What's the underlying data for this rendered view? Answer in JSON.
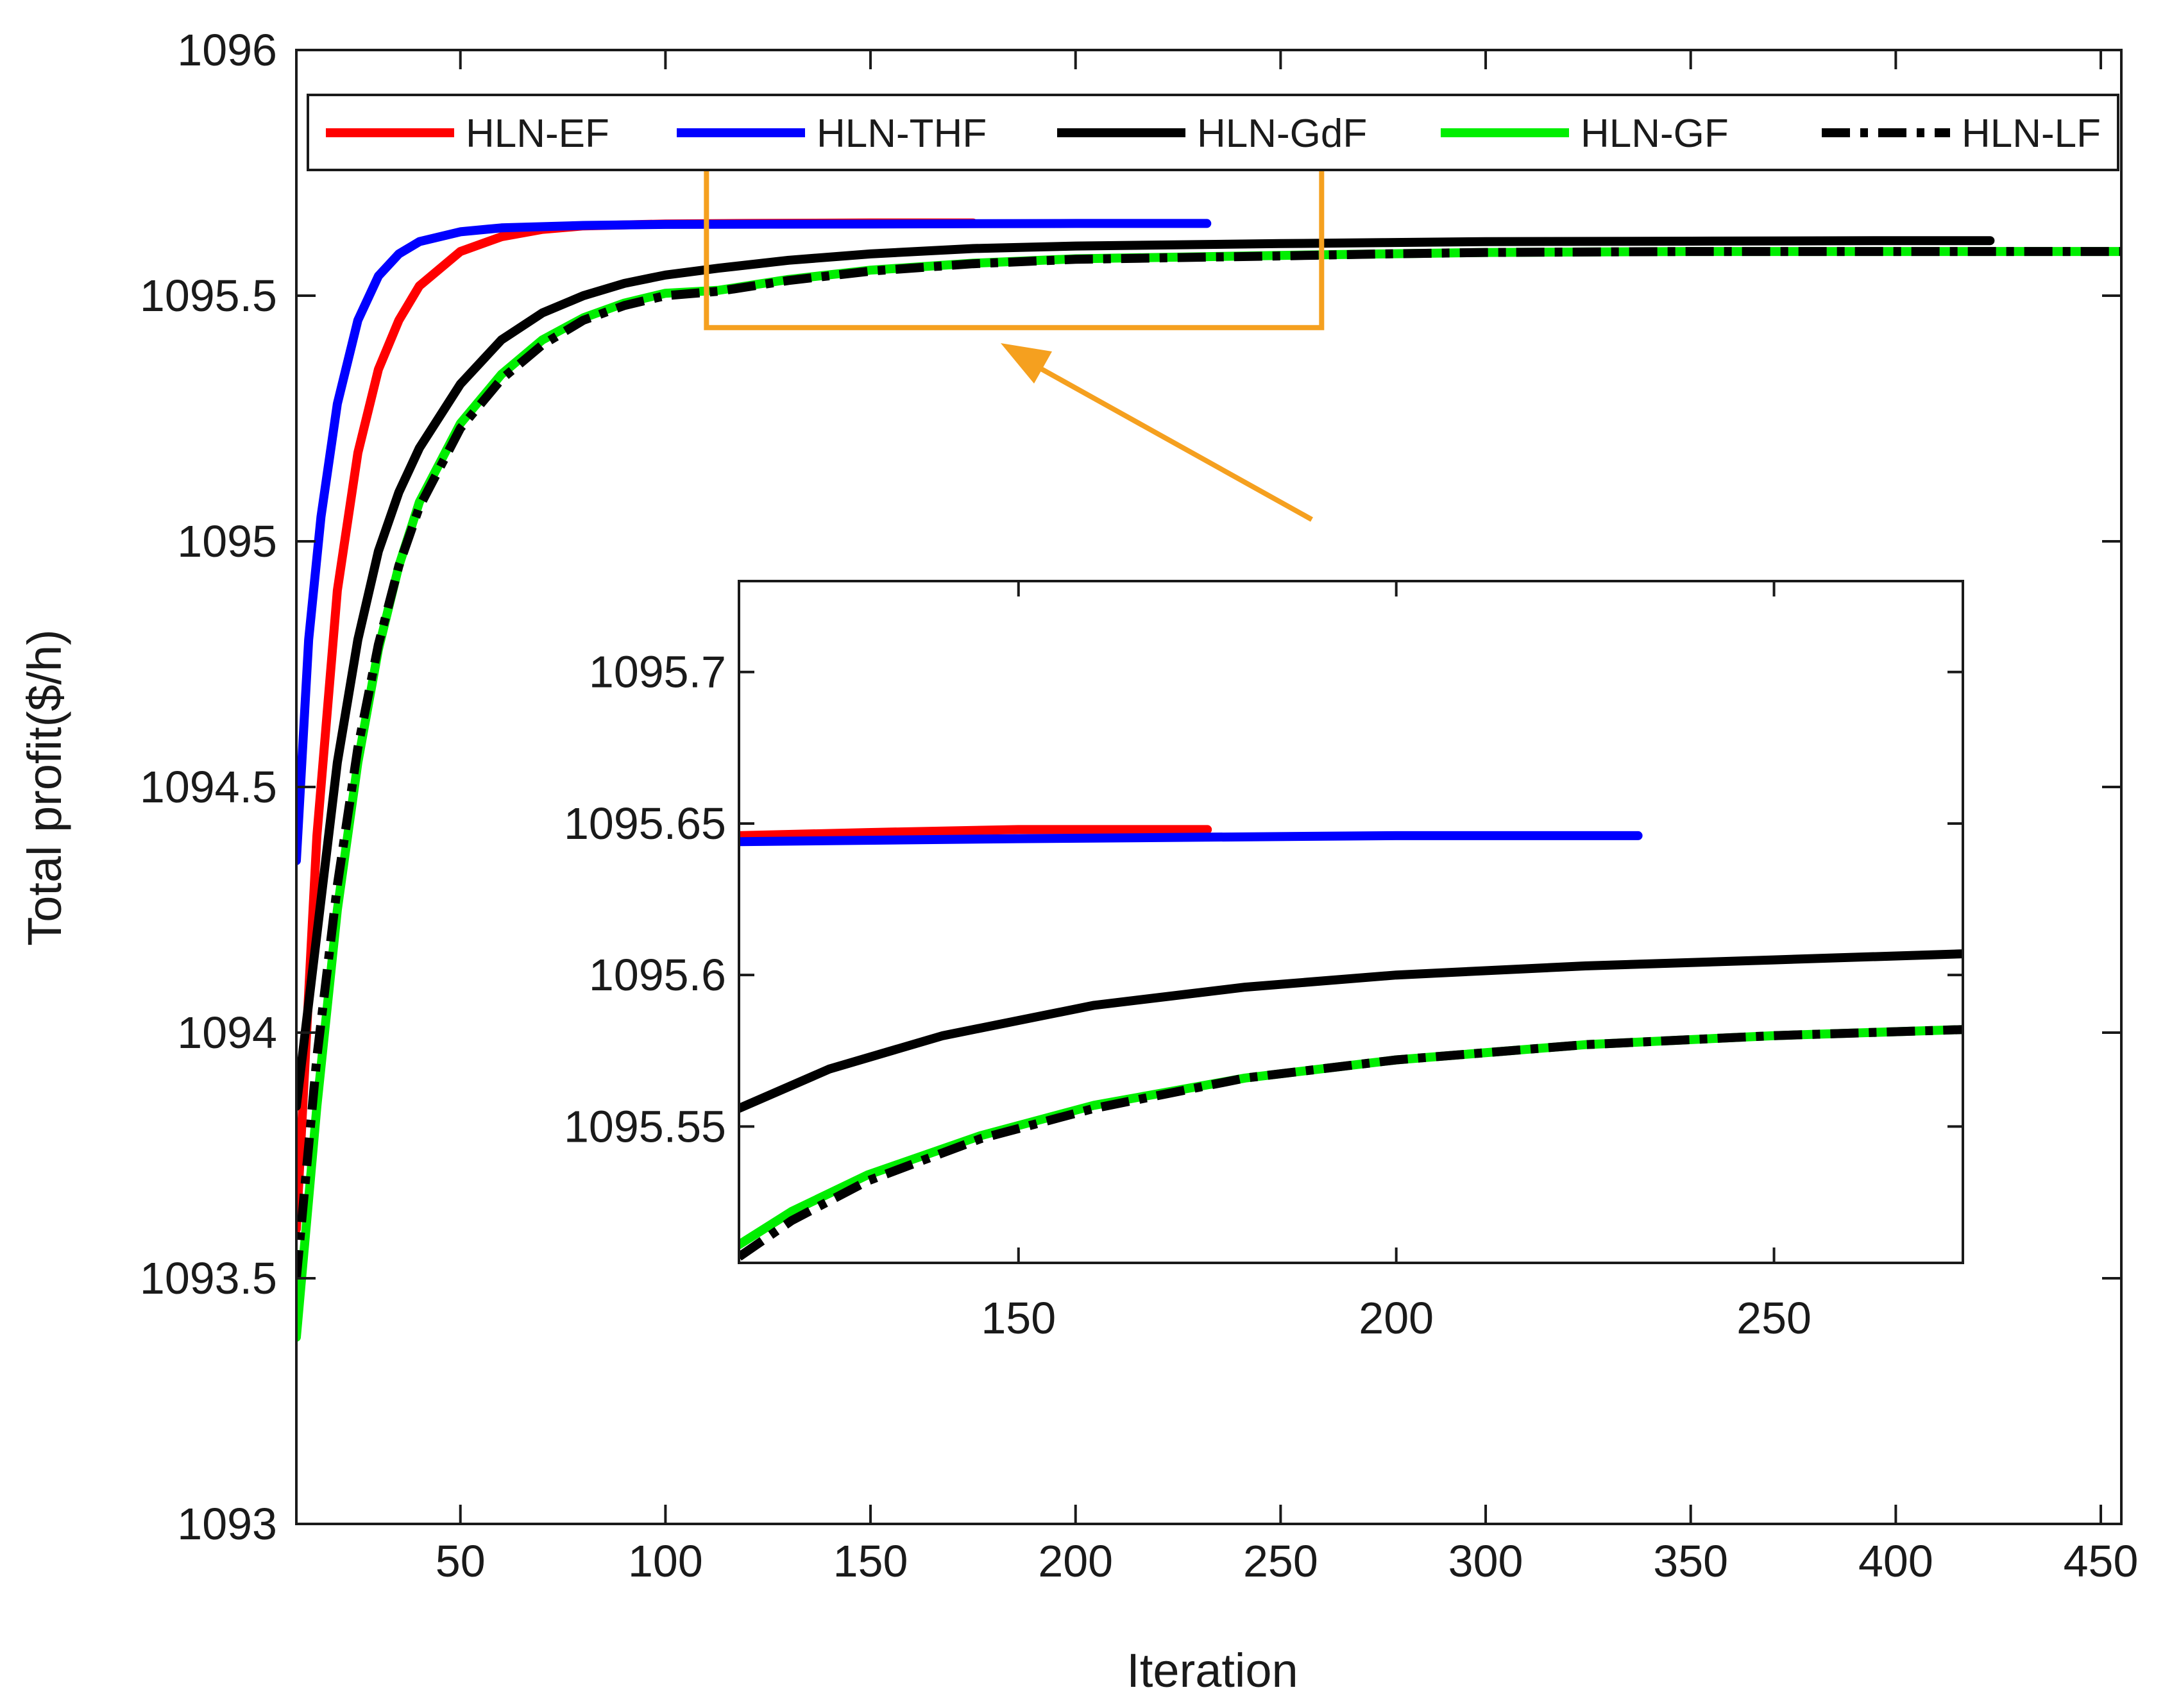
{
  "chart_data": [
    {
      "id": "main",
      "type": "line",
      "title": "",
      "xlabel": "Iteration",
      "ylabel": "Total profit($/h)",
      "xlim": [
        10,
        455
      ],
      "ylim": [
        1093,
        1096
      ],
      "xticks": [
        50,
        100,
        150,
        200,
        250,
        300,
        350,
        400,
        450
      ],
      "xtick_labels": [
        "50",
        "100",
        "150",
        "200",
        "250",
        "300",
        "350",
        "400",
        "450"
      ],
      "yticks": [
        1093,
        1093.5,
        1094,
        1094.5,
        1095,
        1095.5,
        1096
      ],
      "ytick_labels": [
        "1093",
        "1093.5",
        "1094",
        "1094.5",
        "1095",
        "1095.5",
        "1096"
      ],
      "grid": false,
      "legend_position": "top",
      "series": [
        {
          "name": "HLN-EF",
          "color": "#ff0000",
          "dash": "solid",
          "x": [
            10,
            15,
            20,
            25,
            30,
            35,
            40,
            50,
            60,
            70,
            80,
            100,
            120,
            150,
            175
          ],
          "y": [
            1093.6,
            1094.4,
            1094.9,
            1095.18,
            1095.35,
            1095.45,
            1095.52,
            1095.59,
            1095.62,
            1095.635,
            1095.642,
            1095.646,
            1095.647,
            1095.648,
            1095.648
          ]
        },
        {
          "name": "HLN-THF",
          "color": "#0000ff",
          "dash": "solid",
          "x": [
            10,
            13,
            16,
            20,
            25,
            30,
            35,
            40,
            50,
            60,
            80,
            100,
            150,
            200,
            232
          ],
          "y": [
            1094.35,
            1094.8,
            1095.05,
            1095.28,
            1095.45,
            1095.54,
            1095.585,
            1095.61,
            1095.63,
            1095.638,
            1095.643,
            1095.645,
            1095.646,
            1095.647,
            1095.647
          ]
        },
        {
          "name": "HLN-GdF",
          "color": "#000000",
          "dash": "solid",
          "x": [
            10,
            15,
            20,
            25,
            30,
            35,
            40,
            50,
            60,
            70,
            80,
            90,
            100,
            113,
            130,
            150,
            175,
            200,
            250,
            275,
            300,
            350,
            400,
            423
          ],
          "y": [
            1093.85,
            1094.2,
            1094.55,
            1094.8,
            1094.98,
            1095.1,
            1095.19,
            1095.32,
            1095.41,
            1095.465,
            1095.5,
            1095.525,
            1095.542,
            1095.556,
            1095.572,
            1095.585,
            1095.596,
            1095.601,
            1095.606,
            1095.608,
            1095.61,
            1095.611,
            1095.612,
            1095.612
          ]
        },
        {
          "name": "HLN-GF",
          "color": "#00ee00",
          "dash": "solid",
          "x": [
            10,
            15,
            20,
            25,
            30,
            35,
            40,
            50,
            60,
            70,
            80,
            90,
            100,
            113,
            130,
            150,
            175,
            200,
            250,
            275,
            300,
            350,
            400,
            455
          ],
          "y": [
            1093.38,
            1093.85,
            1094.25,
            1094.55,
            1094.78,
            1094.95,
            1095.08,
            1095.24,
            1095.34,
            1095.41,
            1095.455,
            1095.485,
            1095.505,
            1095.511,
            1095.533,
            1095.552,
            1095.566,
            1095.575,
            1095.582,
            1095.585,
            1095.588,
            1095.59,
            1095.59,
            1095.59
          ]
        },
        {
          "name": "HLN-LF",
          "color": "#000000",
          "dash": "dashdot",
          "x": [
            10,
            15,
            20,
            25,
            30,
            35,
            40,
            50,
            60,
            70,
            80,
            90,
            100,
            113,
            130,
            150,
            175,
            200,
            250,
            275,
            300,
            350,
            400,
            455
          ],
          "y": [
            1093.5,
            1093.95,
            1094.3,
            1094.58,
            1094.79,
            1094.95,
            1095.07,
            1095.23,
            1095.33,
            1095.4,
            1095.45,
            1095.48,
            1095.5,
            1095.509,
            1095.531,
            1095.55,
            1095.565,
            1095.574,
            1095.581,
            1095.585,
            1095.588,
            1095.59,
            1095.59,
            1095.59
          ]
        }
      ]
    },
    {
      "id": "inset",
      "type": "line",
      "title": "",
      "xlabel": "",
      "ylabel": "",
      "xlim": [
        113,
        275
      ],
      "ylim": [
        1095.505,
        1095.73
      ],
      "xticks": [
        150,
        200,
        250
      ],
      "xtick_labels": [
        "150",
        "200",
        "250"
      ],
      "yticks": [
        1095.55,
        1095.6,
        1095.65,
        1095.7
      ],
      "ytick_labels": [
        "1095.55",
        "1095.6",
        "1095.65",
        "1095.7"
      ],
      "grid": false,
      "series": [
        {
          "name": "HLN-EF",
          "color": "#ff0000",
          "dash": "solid",
          "x": [
            113,
            130,
            150,
            175
          ],
          "y": [
            1095.646,
            1095.647,
            1095.648,
            1095.648
          ]
        },
        {
          "name": "HLN-THF",
          "color": "#0000ff",
          "dash": "solid",
          "x": [
            113,
            150,
            200,
            232
          ],
          "y": [
            1095.644,
            1095.645,
            1095.646,
            1095.646
          ]
        },
        {
          "name": "HLN-GdF",
          "color": "#000000",
          "dash": "solid",
          "x": [
            113,
            125,
            140,
            160,
            180,
            200,
            225,
            250,
            275
          ],
          "y": [
            1095.556,
            1095.569,
            1095.58,
            1095.59,
            1095.596,
            1095.6,
            1095.603,
            1095.605,
            1095.607
          ]
        },
        {
          "name": "HLN-GF",
          "color": "#00ee00",
          "dash": "solid",
          "x": [
            113,
            120,
            130,
            145,
            160,
            180,
            200,
            225,
            250,
            275
          ],
          "y": [
            1095.511,
            1095.522,
            1095.534,
            1095.547,
            1095.557,
            1095.566,
            1095.572,
            1095.577,
            1095.58,
            1095.582
          ]
        },
        {
          "name": "HLN-LF",
          "color": "#000000",
          "dash": "dashdot",
          "x": [
            113,
            120,
            130,
            145,
            160,
            180,
            200,
            225,
            250,
            275
          ],
          "y": [
            1095.507,
            1095.519,
            1095.532,
            1095.546,
            1095.556,
            1095.566,
            1095.572,
            1095.577,
            1095.58,
            1095.582
          ]
        }
      ]
    }
  ],
  "zoom_box": {
    "x_range": [
      110,
      260
    ],
    "y_range": [
      1095.435,
      1095.76
    ],
    "color": "#f5a01f"
  },
  "colors": {
    "axis": "#1a1a1a",
    "zoom": "#f5a01f"
  }
}
